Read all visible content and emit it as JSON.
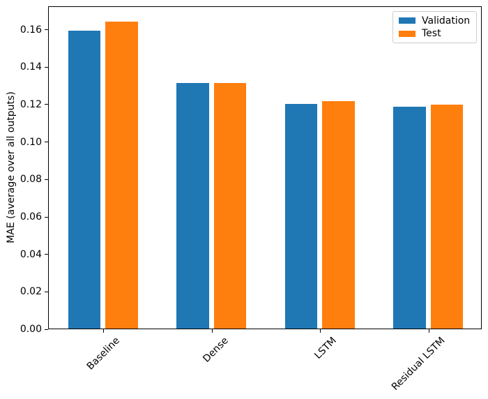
{
  "chart_data": {
    "type": "bar",
    "title": "",
    "xlabel": "",
    "ylabel": "MAE (average over all outputs)",
    "categories": [
      "Baseline",
      "Dense",
      "LSTM",
      "Residual LSTM"
    ],
    "series": [
      {
        "name": "Validation",
        "color": "#1f77b4",
        "values": [
          0.159,
          0.131,
          0.12,
          0.1185
        ]
      },
      {
        "name": "Test",
        "color": "#ff7f0e",
        "values": [
          0.164,
          0.131,
          0.1215,
          0.1195
        ]
      }
    ],
    "ylim": [
      0,
      0.1725
    ],
    "ytick_labels": [
      "0.00",
      "0.02",
      "0.04",
      "0.06",
      "0.08",
      "0.10",
      "0.12",
      "0.14",
      "0.16"
    ],
    "xtick_rotation_deg": 45,
    "grid": false,
    "legend": {
      "position": "upper right",
      "items": [
        {
          "label": "Validation",
          "color": "#1f77b4"
        },
        {
          "label": "Test",
          "color": "#ff7f0e"
        }
      ]
    }
  }
}
